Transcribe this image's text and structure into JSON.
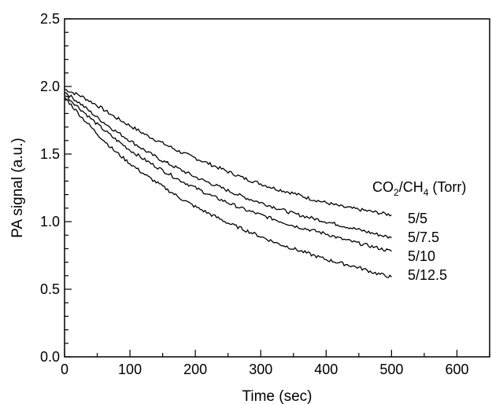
{
  "chart_data": {
    "type": "line",
    "xlabel": "Time (sec)",
    "ylabel": "PA signal (a.u.)",
    "xlim": [
      0,
      650
    ],
    "ylim": [
      0.0,
      2.5
    ],
    "x_ticks": [
      "0",
      "100",
      "200",
      "300",
      "400",
      "500",
      "600"
    ],
    "y_ticks": [
      "0.0",
      "0.5",
      "1.0",
      "1.5",
      "2.0",
      "2.5"
    ],
    "legend": {
      "title_parts": [
        "CO",
        "2",
        "/CH",
        "4",
        " (Torr)"
      ]
    },
    "series": [
      {
        "name": "5/5",
        "x": [
          0,
          25,
          50,
          75,
          100,
          125,
          150,
          175,
          200,
          225,
          250,
          275,
          300,
          325,
          350,
          375,
          400,
          425,
          450,
          475,
          500
        ],
        "y": [
          1.98,
          1.93,
          1.86,
          1.78,
          1.71,
          1.64,
          1.58,
          1.52,
          1.47,
          1.42,
          1.37,
          1.32,
          1.28,
          1.24,
          1.21,
          1.17,
          1.14,
          1.11,
          1.09,
          1.07,
          1.05
        ]
      },
      {
        "name": "5/7.5",
        "x": [
          0,
          25,
          50,
          75,
          100,
          125,
          150,
          175,
          200,
          225,
          250,
          275,
          300,
          325,
          350,
          375,
          400,
          425,
          450,
          475,
          500
        ],
        "y": [
          1.96,
          1.87,
          1.77,
          1.68,
          1.6,
          1.52,
          1.45,
          1.39,
          1.33,
          1.28,
          1.23,
          1.18,
          1.14,
          1.1,
          1.06,
          1.03,
          1.0,
          0.97,
          0.94,
          0.91,
          0.88
        ]
      },
      {
        "name": "5/10",
        "x": [
          0,
          25,
          50,
          75,
          100,
          125,
          150,
          175,
          200,
          225,
          250,
          275,
          300,
          325,
          350,
          375,
          400,
          425,
          450,
          475,
          500
        ],
        "y": [
          1.94,
          1.83,
          1.72,
          1.62,
          1.53,
          1.45,
          1.38,
          1.31,
          1.25,
          1.19,
          1.14,
          1.09,
          1.05,
          1.01,
          0.97,
          0.94,
          0.91,
          0.87,
          0.84,
          0.81,
          0.78
        ]
      },
      {
        "name": "5/12.5",
        "x": [
          0,
          25,
          50,
          75,
          100,
          125,
          150,
          175,
          200,
          225,
          250,
          275,
          300,
          325,
          350,
          375,
          400,
          425,
          450,
          475,
          500
        ],
        "y": [
          1.92,
          1.78,
          1.65,
          1.53,
          1.43,
          1.34,
          1.26,
          1.18,
          1.11,
          1.05,
          0.99,
          0.94,
          0.89,
          0.84,
          0.8,
          0.76,
          0.72,
          0.69,
          0.66,
          0.62,
          0.59
        ]
      }
    ]
  }
}
